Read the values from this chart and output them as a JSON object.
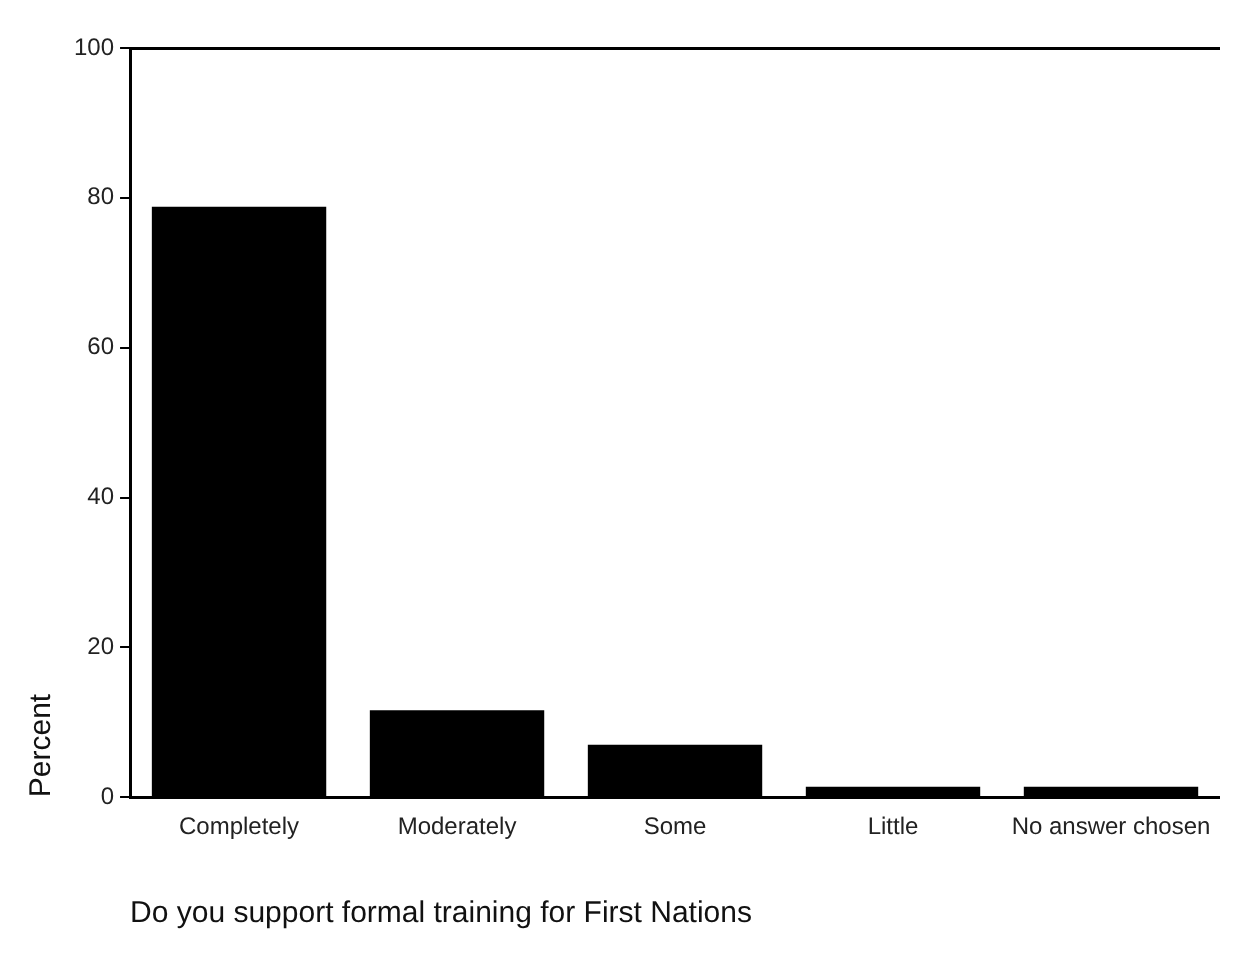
{
  "chart_data": {
    "type": "bar",
    "xlabel": "Do you support formal training for First Nations",
    "ylabel": "Percent",
    "categories": [
      "Completely",
      "Moderately",
      "Some",
      "Little",
      "No answer chosen"
    ],
    "values": [
      78.8,
      11.6,
      7.0,
      1.4,
      1.4
    ],
    "color": "#000000",
    "ylim": [
      0,
      100
    ],
    "yticks": [
      0,
      20,
      40,
      60,
      80,
      100
    ],
    "grid": false,
    "legend": false
  }
}
